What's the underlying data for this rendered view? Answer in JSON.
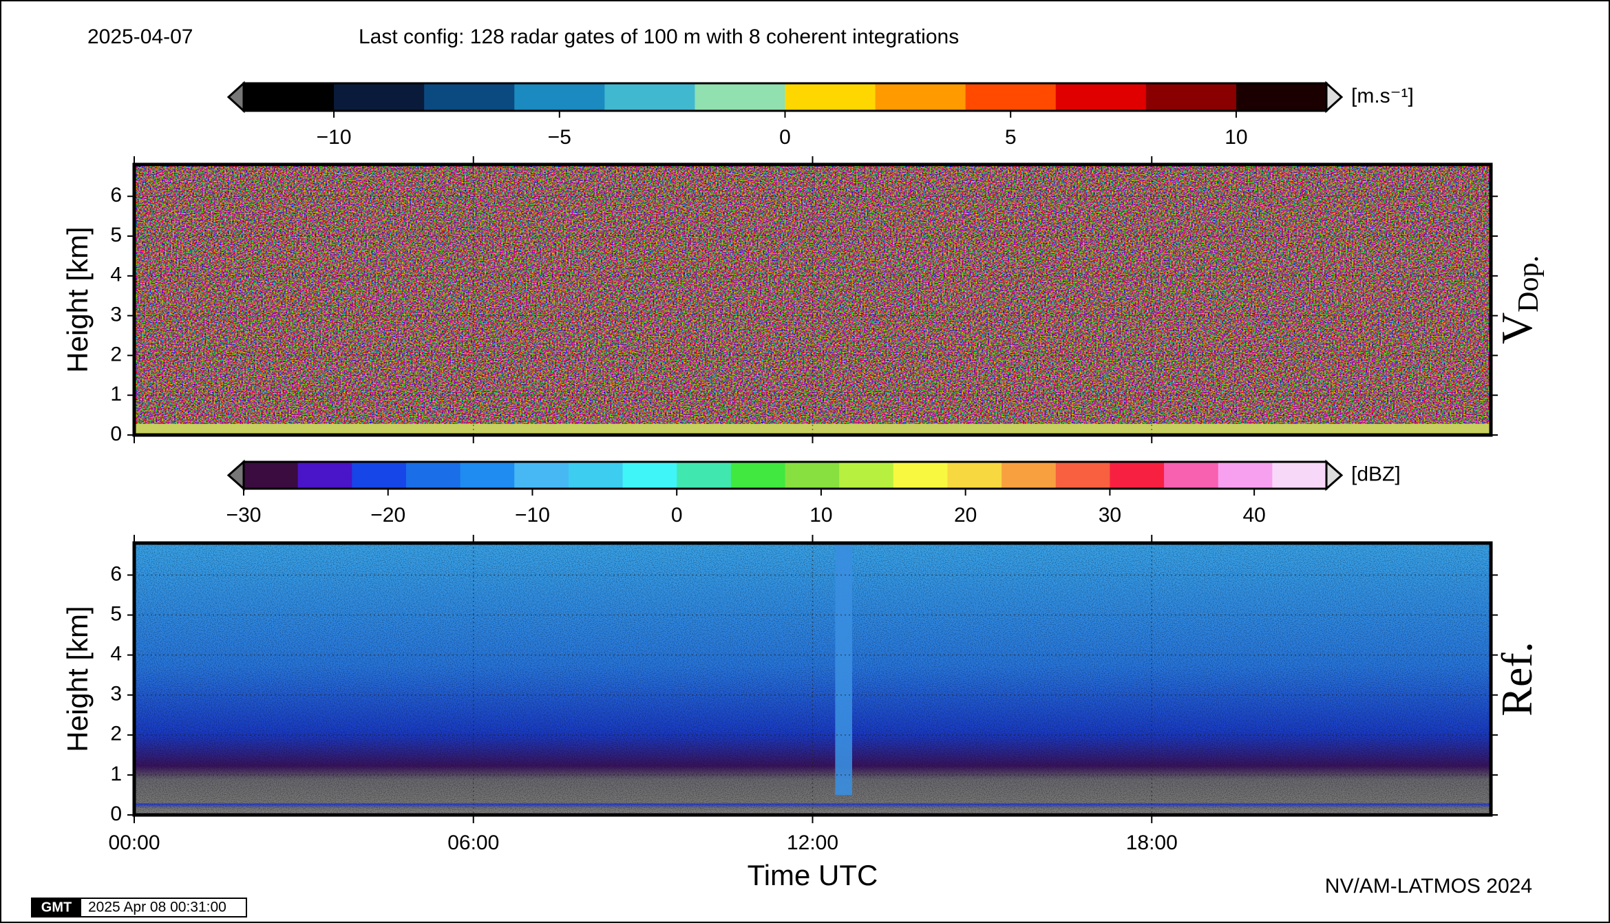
{
  "date": "2025-04-07",
  "config": "Last config: 128 radar gates of 100 m with 8 coherent integrations",
  "credit": "NV/AM-LATMOS 2024",
  "logo": "GMT",
  "timestamp": "2025 Apr 08 00:31:00",
  "chart_data": [
    {
      "type": "heatmap",
      "panel_label": "V",
      "panel_label_sub": "Dop.",
      "ylabel": "Height [km]",
      "ylim": [
        0,
        6.8
      ],
      "yticks": [
        0,
        1,
        2,
        3,
        4,
        5,
        6
      ],
      "xlim": [
        0,
        24
      ],
      "xticks": [
        0,
        6,
        12,
        18
      ],
      "grid": true,
      "colorbar": {
        "label": "[m.s⁻¹]",
        "lim": [
          -12,
          12
        ],
        "ticks": [
          {
            "value": -10,
            "label": "−10"
          },
          {
            "value": -5,
            "label": "−5"
          },
          0,
          5,
          10
        ],
        "colors": [
          "#000000",
          "#0a1a3a",
          "#0a4a80",
          "#1a8ac0",
          "#40b8d0",
          "#90e0b0",
          "#ffd700",
          "#ff9a00",
          "#ff4a00",
          "#e00000",
          "#8a0000",
          "#1a0000"
        ]
      }
    },
    {
      "type": "heatmap",
      "panel_label": "Ref.",
      "ylabel": "Height [km]",
      "xlabel": "Time UTC",
      "ylim": [
        0,
        6.8
      ],
      "yticks": [
        0,
        1,
        2,
        3,
        4,
        5,
        6
      ],
      "xlim": [
        0,
        24
      ],
      "xticks": [
        {
          "value": 0,
          "label": "00:00"
        },
        {
          "value": 6,
          "label": "06:00"
        },
        {
          "value": 12,
          "label": "12:00"
        },
        {
          "value": 18,
          "label": "18:00"
        }
      ],
      "grid": true,
      "colorbar": {
        "label": "[dBZ]",
        "lim": [
          -30,
          45
        ],
        "ticks": [
          {
            "value": -30,
            "label": "−30"
          },
          {
            "value": -20,
            "label": "−20"
          },
          {
            "value": -10,
            "label": "−10"
          },
          0,
          10,
          20,
          30,
          40
        ],
        "colors": [
          "#3a0c40",
          "#4a14c8",
          "#1646e8",
          "#1a6ee8",
          "#1e8cf0",
          "#48b8f5",
          "#3ccdf0",
          "#40f5f8",
          "#40e8b0",
          "#40e840",
          "#88e040",
          "#b8f040",
          "#f8f840",
          "#f8d840",
          "#f8a040",
          "#f86040",
          "#f82040",
          "#f860b0",
          "#f8a0f0",
          "#f8d8f8"
        ]
      }
    }
  ]
}
